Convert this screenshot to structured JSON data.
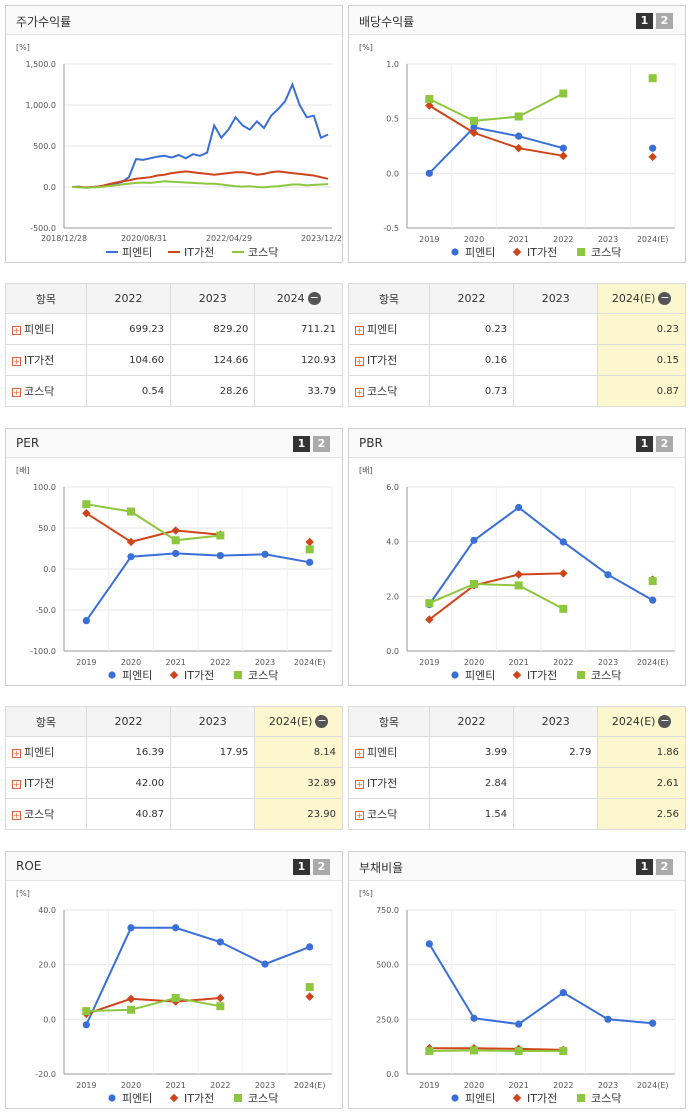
{
  "labels": {
    "n1": "피엔티",
    "n2": "IT가전",
    "n3": "코스닥",
    "b1": "1",
    "b2": "2",
    "minus": "−",
    "plus": "+"
  },
  "colors": {
    "n1": "#3a6fd8",
    "n2": "#d0441a",
    "n3": "#8dc63f"
  },
  "panels": {
    "stock": {
      "title": "주가수익률",
      "unit": "[%]"
    },
    "div": {
      "title": "배당수익률",
      "unit": "[%]"
    },
    "per": {
      "title": "PER",
      "unit": "[배]"
    },
    "pbr": {
      "title": "PBR",
      "unit": "[배]"
    },
    "roe": {
      "title": "ROE",
      "unit": "[%]"
    },
    "debt": {
      "title": "부채비율",
      "unit": "[%]"
    }
  },
  "tables": {
    "stock": {
      "head": [
        "항목",
        "2022",
        "2023",
        "2024"
      ],
      "rows": [
        [
          "피엔티",
          "699.23",
          "829.20",
          "711.21"
        ],
        [
          "IT가전",
          "104.60",
          "124.66",
          "120.93"
        ],
        [
          "코스닥",
          "0.54",
          "28.26",
          "33.79"
        ]
      ]
    },
    "div": {
      "head": [
        "항목",
        "2022",
        "2023",
        "2024(E)"
      ],
      "rows": [
        [
          "피엔티",
          "0.23",
          "",
          "0.23"
        ],
        [
          "IT가전",
          "0.16",
          "",
          "0.15"
        ],
        [
          "코스닥",
          "0.73",
          "",
          "0.87"
        ]
      ]
    },
    "per": {
      "head": [
        "항목",
        "2022",
        "2023",
        "2024(E)"
      ],
      "rows": [
        [
          "피엔티",
          "16.39",
          "17.95",
          "8.14"
        ],
        [
          "IT가전",
          "42.00",
          "",
          "32.89"
        ],
        [
          "코스닥",
          "40.87",
          "",
          "23.90"
        ]
      ]
    },
    "pbr": {
      "head": [
        "항목",
        "2022",
        "2023",
        "2024(E)"
      ],
      "rows": [
        [
          "피엔티",
          "3.99",
          "2.79",
          "1.86"
        ],
        [
          "IT가전",
          "2.84",
          "",
          "2.61"
        ],
        [
          "코스닥",
          "1.54",
          "",
          "2.56"
        ]
      ]
    }
  },
  "chart_data": [
    {
      "id": "stock",
      "type": "line",
      "title": "주가수익률",
      "ylabel": "[%]",
      "ylim": [
        -500,
        1500
      ],
      "yticks": [
        "1,500.0",
        "1,000.0",
        "500.0",
        "0.0",
        "-500.0"
      ],
      "xticks": [
        "2018/12/28",
        "2020/08/31",
        "2022/04/29",
        "2023/12/28"
      ],
      "series": [
        {
          "name": "피엔티",
          "values": [
            0,
            5,
            -10,
            0,
            10,
            20,
            40,
            60,
            120,
            340,
            330,
            350,
            370,
            380,
            360,
            390,
            350,
            400,
            380,
            420,
            750,
            600,
            700,
            850,
            750,
            700,
            800,
            720,
            870,
            950,
            1050,
            1250,
            1000,
            850,
            870,
            600,
            640
          ]
        },
        {
          "name": "IT가전",
          "values": [
            0,
            0,
            -5,
            0,
            10,
            30,
            50,
            70,
            80,
            100,
            110,
            120,
            140,
            150,
            170,
            180,
            190,
            180,
            170,
            160,
            150,
            160,
            170,
            180,
            180,
            170,
            150,
            160,
            180,
            190,
            180,
            170,
            160,
            150,
            140,
            120,
            100
          ]
        },
        {
          "name": "코스닥",
          "values": [
            0,
            -5,
            -10,
            -5,
            0,
            10,
            20,
            30,
            40,
            50,
            55,
            50,
            60,
            70,
            65,
            60,
            55,
            50,
            45,
            40,
            40,
            30,
            20,
            10,
            5,
            10,
            0,
            -5,
            5,
            10,
            20,
            30,
            30,
            20,
            25,
            30,
            35
          ]
        }
      ]
    },
    {
      "id": "div",
      "type": "line",
      "title": "배당수익률",
      "ylabel": "[%]",
      "ylim": [
        -0.5,
        1.0
      ],
      "yticks": [
        "1.0",
        "0.5",
        "0.0",
        "-0.5"
      ],
      "xticks": [
        "2019",
        "2020",
        "2021",
        "2022",
        "2023",
        "2024(E)"
      ],
      "series": [
        {
          "name": "피엔티",
          "values": [
            0.0,
            0.42,
            0.34,
            0.23,
            null,
            0.23
          ]
        },
        {
          "name": "IT가전",
          "values": [
            0.62,
            0.37,
            0.23,
            0.16,
            null,
            0.15
          ]
        },
        {
          "name": "코스닥",
          "values": [
            0.68,
            0.48,
            0.52,
            0.73,
            null,
            0.87
          ]
        }
      ]
    },
    {
      "id": "per",
      "type": "line",
      "title": "PER",
      "ylabel": "[배]",
      "ylim": [
        -100,
        100
      ],
      "yticks": [
        "100.0",
        "50.0",
        "0.0",
        "-50.0",
        "-100.0"
      ],
      "xticks": [
        "2019",
        "2020",
        "2021",
        "2022",
        "2023",
        "2024(E)"
      ],
      "series": [
        {
          "name": "피엔티",
          "values": [
            -63,
            15,
            19,
            16.39,
            17.95,
            8.14
          ]
        },
        {
          "name": "IT가전",
          "values": [
            68,
            33,
            47,
            42.0,
            null,
            32.89
          ]
        },
        {
          "name": "코스닥",
          "values": [
            79,
            70,
            35,
            40.87,
            null,
            23.9
          ]
        }
      ]
    },
    {
      "id": "pbr",
      "type": "line",
      "title": "PBR",
      "ylabel": "[배]",
      "ylim": [
        0,
        6
      ],
      "yticks": [
        "6.0",
        "4.0",
        "2.0",
        "0.0"
      ],
      "xticks": [
        "2019",
        "2020",
        "2021",
        "2022",
        "2023",
        "2024(E)"
      ],
      "series": [
        {
          "name": "피엔티",
          "values": [
            1.7,
            4.05,
            5.25,
            3.99,
            2.79,
            1.86
          ]
        },
        {
          "name": "IT가전",
          "values": [
            1.15,
            2.4,
            2.8,
            2.84,
            null,
            2.61
          ]
        },
        {
          "name": "코스닥",
          "values": [
            1.75,
            2.45,
            2.4,
            1.54,
            null,
            2.56
          ]
        }
      ]
    },
    {
      "id": "roe",
      "type": "line",
      "title": "ROE",
      "ylabel": "[%]",
      "ylim": [
        -20,
        40
      ],
      "yticks": [
        "40.0",
        "20.0",
        "0.0",
        "-20.0"
      ],
      "xticks": [
        "2019",
        "2020",
        "2021",
        "2022",
        "2023",
        "2024(E)"
      ],
      "series": [
        {
          "name": "피엔티",
          "values": [
            -2,
            33.5,
            33.5,
            28.3,
            20.2,
            26.5
          ]
        },
        {
          "name": "IT가전",
          "values": [
            2,
            7.5,
            6.5,
            7.8,
            null,
            8.3
          ]
        },
        {
          "name": "코스닥",
          "values": [
            3,
            3.5,
            7.8,
            4.8,
            null,
            11.8
          ]
        }
      ]
    },
    {
      "id": "debt",
      "type": "line",
      "title": "부채비율",
      "ylabel": "[%]",
      "ylim": [
        0,
        750
      ],
      "yticks": [
        "750.0",
        "500.0",
        "250.0",
        "0.0"
      ],
      "xticks": [
        "2019",
        "2020",
        "2021",
        "2022",
        "2023",
        "2024(E)"
      ],
      "series": [
        {
          "name": "피엔티",
          "values": [
            595,
            255,
            228,
            372,
            250,
            232
          ]
        },
        {
          "name": "IT가전",
          "values": [
            118,
            118,
            115,
            110,
            null,
            null
          ]
        },
        {
          "name": "코스닥",
          "values": [
            105,
            108,
            105,
            105,
            null,
            null
          ]
        }
      ]
    }
  ]
}
